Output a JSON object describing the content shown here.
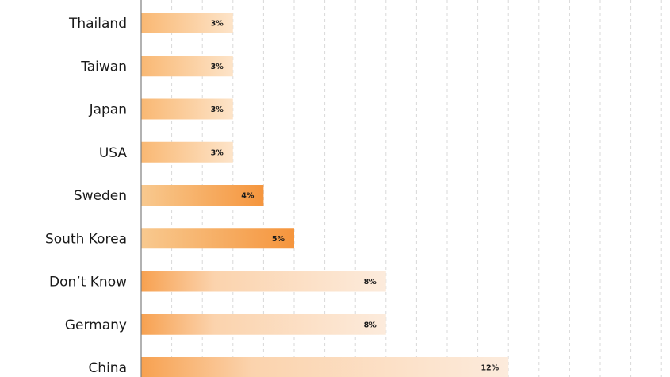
{
  "chart_data": {
    "type": "bar",
    "orientation": "horizontal",
    "categories": [
      "Thailand",
      "Taiwan",
      "Japan",
      "USA",
      "Sweden",
      "South Korea",
      "Don’t Know",
      "Germany",
      "China"
    ],
    "values": [
      3,
      3,
      3,
      3,
      4,
      5,
      8,
      8,
      12
    ],
    "value_labels": [
      "3%",
      "3%",
      "3%",
      "3%",
      "4%",
      "5%",
      "8%",
      "8%",
      "12%"
    ],
    "unit": "%",
    "xlim": [
      0,
      17.5
    ],
    "grid": true,
    "grid_style": "dashed-vertical",
    "grid_step": 1,
    "bar_colors": {
      "strong": "#f7a24d",
      "light": "#fde3c8",
      "pale": "#fbe9d6"
    }
  }
}
